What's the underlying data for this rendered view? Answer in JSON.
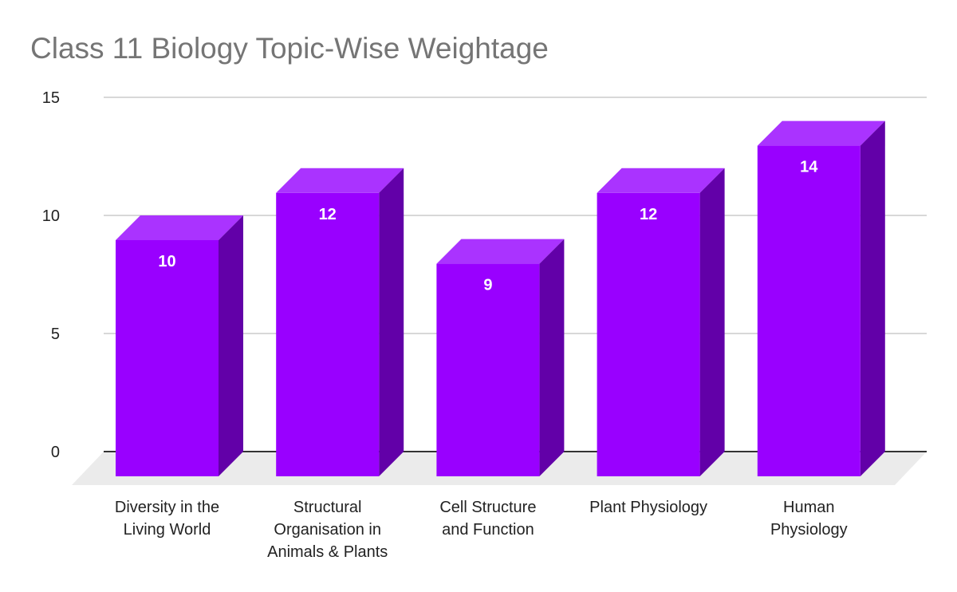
{
  "chart_data": {
    "type": "bar",
    "style": "3d",
    "title": "Class 11 Biology Topic-Wise Weightage",
    "xlabel": "",
    "ylabel": "",
    "categories": [
      [
        "Diversity in the",
        "Living World"
      ],
      [
        "Structural",
        "Organisation in",
        "Animals & Plants"
      ],
      [
        "Cell Structure",
        "and Function"
      ],
      [
        "Plant Physiology"
      ],
      [
        "Human",
        "Physiology"
      ]
    ],
    "values": [
      10,
      12,
      9,
      12,
      14
    ],
    "data_labels": [
      "10",
      "12",
      "9",
      "12",
      "14"
    ],
    "ylim": [
      0,
      15
    ],
    "yticks": [
      "0",
      "5",
      "10",
      "15"
    ],
    "grid": true,
    "legend": "none",
    "colors": {
      "front": "#9900ff",
      "top": "#aa33ff",
      "side": "#6200a8",
      "floor": "#ebebeb",
      "grid": "#cccccc"
    }
  }
}
